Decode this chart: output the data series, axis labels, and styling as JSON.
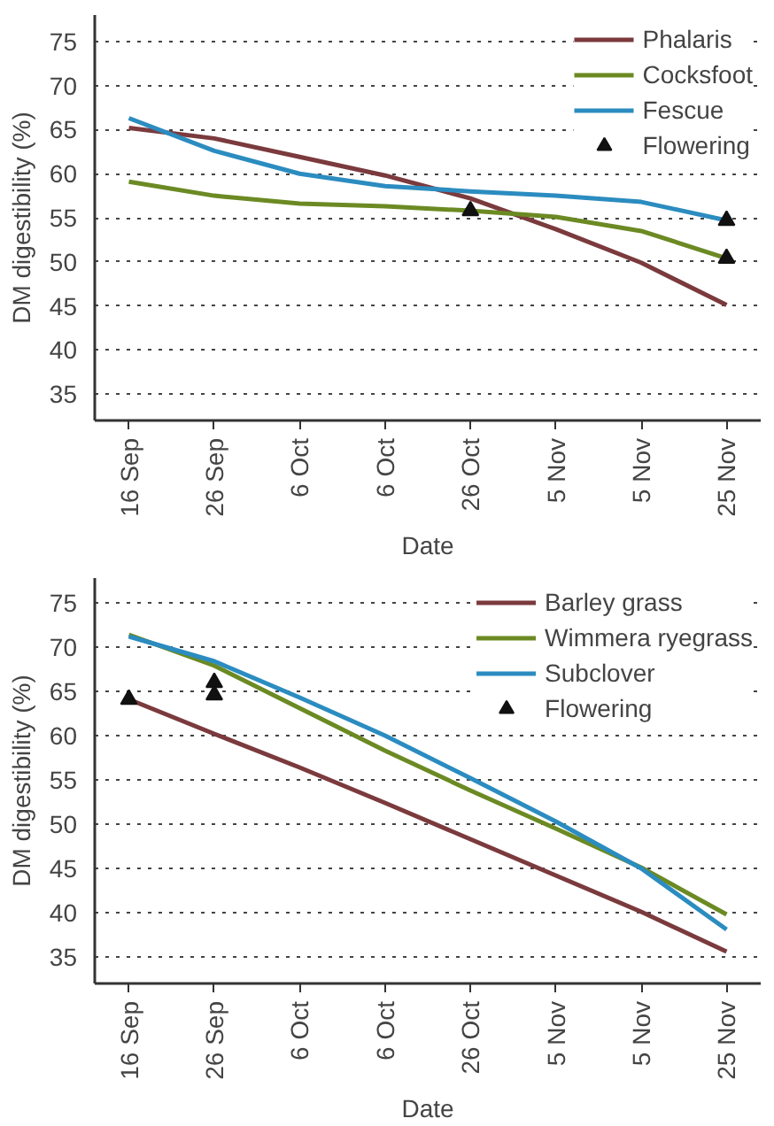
{
  "chart_data": [
    {
      "type": "line",
      "xlabel": "Date",
      "ylabel": "DM digestibility (%)",
      "categories": [
        "16 Sep",
        "26 Sep",
        "6 Oct",
        "6 Oct",
        "26 Oct",
        "5 Nov",
        "5 Nov",
        "25 Nov"
      ],
      "ylim": [
        32,
        78
      ],
      "yticks": [
        35,
        40,
        45,
        50,
        55,
        60,
        65,
        70,
        75
      ],
      "grid": "y",
      "line_style": "solid",
      "legend": "top right",
      "series": [
        {
          "name": "Phalaris",
          "color": "#7b3a3d",
          "values": [
            65.2,
            64.0,
            61.9,
            59.8,
            57.2,
            53.7,
            49.9,
            45.1
          ]
        },
        {
          "name": "Cocksfoot",
          "color": "#6b8a23",
          "values": [
            59.1,
            57.5,
            56.6,
            56.3,
            55.8,
            55.1,
            53.5,
            50.4
          ]
        },
        {
          "name": "Fescue",
          "color": "#2b8cc0",
          "values": [
            66.3,
            62.6,
            60.0,
            58.6,
            58.0,
            57.5,
            56.8,
            54.7
          ]
        },
        {
          "name": "Flowering",
          "type": "scatter",
          "marker": "triangle",
          "color": "#111111",
          "values": [
            null,
            null,
            null,
            null,
            55.8,
            null,
            null,
            54.7
          ]
        },
        {
          "type": "scatter",
          "marker": "triangle",
          "color": "#111111",
          "values": [
            null,
            null,
            null,
            null,
            null,
            null,
            null,
            50.4
          ]
        }
      ]
    },
    {
      "type": "line",
      "xlabel": "Date",
      "ylabel": "DM digestibility (%)",
      "categories": [
        "16 Sep",
        "26 Sep",
        "6 Oct",
        "6 Oct",
        "26 Oct",
        "5 Nov",
        "5 Nov",
        "25 Nov"
      ],
      "ylim": [
        32,
        77.8
      ],
      "yticks": [
        35,
        40,
        45,
        50,
        55,
        60,
        65,
        70,
        75
      ],
      "grid": "y",
      "line_style": "solid",
      "legend": "top right",
      "series": [
        {
          "name": "Barley grass",
          "color": "#7b3a3d",
          "values": [
            64.1,
            60.2,
            56.4,
            52.4,
            48.3,
            44.2,
            40.1,
            35.6
          ]
        },
        {
          "name": "Wimmera ryegrass",
          "color": "#6b8a23",
          "values": [
            71.4,
            67.9,
            63.1,
            58.3,
            53.8,
            49.5,
            45.1,
            39.8
          ]
        },
        {
          "name": "Subclover",
          "color": "#2b8cc0",
          "values": [
            71.2,
            68.4,
            64.3,
            60.0,
            55.2,
            50.3,
            45.0,
            38.1
          ]
        },
        {
          "name": "Flowering",
          "type": "scatter",
          "marker": "triangle",
          "color": "#111111",
          "values": [
            64.1,
            66.0,
            null,
            null,
            null,
            null,
            null,
            null
          ]
        },
        {
          "type": "scatter",
          "marker": "triangle",
          "color": "#111111",
          "values": [
            null,
            64.6,
            null,
            null,
            null,
            null,
            null,
            null
          ]
        }
      ]
    }
  ]
}
